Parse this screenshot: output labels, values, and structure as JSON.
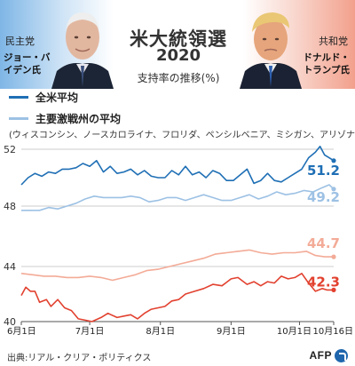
{
  "header": {
    "left_candidate": {
      "party": "民主党",
      "name": "ジョー・バイデン氏"
    },
    "right_candidate": {
      "party": "共和党",
      "name": "ドナルド・トランプ氏"
    },
    "title_line1": "米大統領選",
    "title_line2": "2020",
    "subtitle": "支持率の推移(%)"
  },
  "legend": {
    "national": "全米平均",
    "battleground": "主要激戦州の平均",
    "battleground_note": "(ウィスコンシン、ノースカロライナ、フロリダ、ペンシルベニア、ミシガン、アリゾナ)"
  },
  "source": "出典:リアル・クリア・ポリティクス",
  "logo": "AFP",
  "colors": {
    "national": "#1f6fb5",
    "battleground": "#9dc1e4",
    "trump_national": "#e2412f",
    "trump_battleground": "#f3ab97"
  },
  "chart_data": {
    "type": "line",
    "title": "米大統領選 2020",
    "ylabel": "支持率の推移(%)",
    "xlim": [
      "2020-06-01",
      "2020-10-16"
    ],
    "x_ticks": [
      {
        "date": "2020-06-01",
        "label": "6月1日"
      },
      {
        "date": "2020-07-01",
        "label": "7月1日"
      },
      {
        "date": "2020-08-01",
        "label": "8月1日"
      },
      {
        "date": "2020-09-01",
        "label": "9月1日"
      },
      {
        "date": "2020-10-01",
        "label": "10月1日"
      },
      {
        "date": "2020-10-16",
        "label": "10月16日"
      }
    ],
    "panels": [
      {
        "ylim": [
          48,
          52
        ],
        "yticks": [
          48,
          52
        ]
      },
      {
        "ylim": [
          40,
          44
        ],
        "yticks": [
          40,
          44
        ]
      }
    ],
    "series": [
      {
        "name": "全米平均",
        "candidate": "ジョー・バイデン氏",
        "panel": 0,
        "color": "#1f6fb5",
        "final_label": "51.2",
        "points": [
          [
            "2020-06-01",
            49.5
          ],
          [
            "2020-06-04",
            50.0
          ],
          [
            "2020-06-07",
            50.3
          ],
          [
            "2020-06-10",
            50.1
          ],
          [
            "2020-06-13",
            50.4
          ],
          [
            "2020-06-16",
            50.3
          ],
          [
            "2020-06-19",
            50.6
          ],
          [
            "2020-06-22",
            50.6
          ],
          [
            "2020-06-25",
            50.7
          ],
          [
            "2020-06-28",
            51.0
          ],
          [
            "2020-07-01",
            50.8
          ],
          [
            "2020-07-04",
            51.2
          ],
          [
            "2020-07-07",
            50.4
          ],
          [
            "2020-07-10",
            50.8
          ],
          [
            "2020-07-13",
            50.3
          ],
          [
            "2020-07-16",
            50.4
          ],
          [
            "2020-07-19",
            50.6
          ],
          [
            "2020-07-22",
            50.2
          ],
          [
            "2020-07-25",
            50.5
          ],
          [
            "2020-07-28",
            50.1
          ],
          [
            "2020-07-31",
            50.0
          ],
          [
            "2020-08-03",
            50.0
          ],
          [
            "2020-08-06",
            50.5
          ],
          [
            "2020-08-09",
            50.2
          ],
          [
            "2020-08-12",
            50.8
          ],
          [
            "2020-08-15",
            50.2
          ],
          [
            "2020-08-18",
            50.4
          ],
          [
            "2020-08-21",
            50.0
          ],
          [
            "2020-08-24",
            50.5
          ],
          [
            "2020-08-27",
            50.3
          ],
          [
            "2020-08-30",
            49.8
          ],
          [
            "2020-09-02",
            49.8
          ],
          [
            "2020-09-05",
            50.2
          ],
          [
            "2020-09-08",
            50.6
          ],
          [
            "2020-09-11",
            49.6
          ],
          [
            "2020-09-14",
            49.8
          ],
          [
            "2020-09-17",
            50.3
          ],
          [
            "2020-09-20",
            49.8
          ],
          [
            "2020-09-23",
            49.7
          ],
          [
            "2020-09-26",
            50.0
          ],
          [
            "2020-09-29",
            50.3
          ],
          [
            "2020-10-02",
            50.6
          ],
          [
            "2020-10-05",
            51.4
          ],
          [
            "2020-10-08",
            51.8
          ],
          [
            "2020-10-10",
            52.2
          ],
          [
            "2020-10-12",
            51.6
          ],
          [
            "2020-10-14",
            51.4
          ],
          [
            "2020-10-16",
            51.2
          ]
        ]
      },
      {
        "name": "主要激戦州の平均",
        "candidate": "ジョー・バイデン氏",
        "panel": 0,
        "color": "#9dc1e4",
        "final_label": "49.2",
        "points": [
          [
            "2020-06-01",
            47.7
          ],
          [
            "2020-06-05",
            47.7
          ],
          [
            "2020-06-09",
            47.7
          ],
          [
            "2020-06-13",
            47.9
          ],
          [
            "2020-06-17",
            47.8
          ],
          [
            "2020-06-21",
            48.0
          ],
          [
            "2020-06-25",
            48.2
          ],
          [
            "2020-06-29",
            48.5
          ],
          [
            "2020-07-03",
            48.7
          ],
          [
            "2020-07-07",
            48.6
          ],
          [
            "2020-07-11",
            48.6
          ],
          [
            "2020-07-15",
            48.6
          ],
          [
            "2020-07-19",
            48.7
          ],
          [
            "2020-07-23",
            48.6
          ],
          [
            "2020-07-27",
            48.3
          ],
          [
            "2020-07-31",
            48.4
          ],
          [
            "2020-08-04",
            48.6
          ],
          [
            "2020-08-08",
            48.6
          ],
          [
            "2020-08-12",
            48.4
          ],
          [
            "2020-08-16",
            48.6
          ],
          [
            "2020-08-20",
            48.8
          ],
          [
            "2020-08-24",
            48.6
          ],
          [
            "2020-08-28",
            48.4
          ],
          [
            "2020-09-01",
            48.4
          ],
          [
            "2020-09-05",
            48.6
          ],
          [
            "2020-09-09",
            48.8
          ],
          [
            "2020-09-13",
            48.5
          ],
          [
            "2020-09-17",
            48.7
          ],
          [
            "2020-09-21",
            49.0
          ],
          [
            "2020-09-25",
            48.8
          ],
          [
            "2020-09-29",
            48.9
          ],
          [
            "2020-10-03",
            49.1
          ],
          [
            "2020-10-07",
            49.0
          ],
          [
            "2020-10-11",
            49.3
          ],
          [
            "2020-10-14",
            49.5
          ],
          [
            "2020-10-16",
            49.2
          ]
        ]
      },
      {
        "name": "全米平均",
        "candidate": "ドナルド・トランプ氏",
        "panel": 1,
        "color": "#e2412f",
        "final_label": "42.3",
        "points": [
          [
            "2020-06-01",
            41.9
          ],
          [
            "2020-06-03",
            42.5
          ],
          [
            "2020-06-05",
            42.2
          ],
          [
            "2020-06-07",
            42.2
          ],
          [
            "2020-06-09",
            41.4
          ],
          [
            "2020-06-12",
            41.6
          ],
          [
            "2020-06-14",
            41.1
          ],
          [
            "2020-06-17",
            41.6
          ],
          [
            "2020-06-20",
            41.0
          ],
          [
            "2020-06-23",
            40.8
          ],
          [
            "2020-06-26",
            40.2
          ],
          [
            "2020-06-29",
            40.1
          ],
          [
            "2020-07-02",
            40.0
          ],
          [
            "2020-07-06",
            40.3
          ],
          [
            "2020-07-09",
            40.6
          ],
          [
            "2020-07-13",
            40.3
          ],
          [
            "2020-07-16",
            40.4
          ],
          [
            "2020-07-19",
            40.5
          ],
          [
            "2020-07-22",
            40.2
          ],
          [
            "2020-07-25",
            40.6
          ],
          [
            "2020-07-28",
            40.9
          ],
          [
            "2020-07-31",
            41.0
          ],
          [
            "2020-08-03",
            41.1
          ],
          [
            "2020-08-06",
            41.5
          ],
          [
            "2020-08-09",
            41.6
          ],
          [
            "2020-08-12",
            42.0
          ],
          [
            "2020-08-16",
            42.2
          ],
          [
            "2020-08-20",
            42.4
          ],
          [
            "2020-08-24",
            42.7
          ],
          [
            "2020-08-28",
            42.6
          ],
          [
            "2020-09-01",
            43.1
          ],
          [
            "2020-09-04",
            43.2
          ],
          [
            "2020-09-08",
            42.7
          ],
          [
            "2020-09-11",
            42.9
          ],
          [
            "2020-09-14",
            42.6
          ],
          [
            "2020-09-17",
            42.9
          ],
          [
            "2020-09-20",
            42.8
          ],
          [
            "2020-09-23",
            43.3
          ],
          [
            "2020-09-26",
            43.1
          ],
          [
            "2020-09-29",
            43.2
          ],
          [
            "2020-10-02",
            43.5
          ],
          [
            "2020-10-05",
            42.8
          ],
          [
            "2020-10-08",
            42.2
          ],
          [
            "2020-10-11",
            42.4
          ],
          [
            "2020-10-13",
            42.3
          ],
          [
            "2020-10-16",
            42.3
          ]
        ]
      },
      {
        "name": "主要激戦州の平均",
        "candidate": "ドナルド・トランプ氏",
        "panel": 1,
        "color": "#f3ab97",
        "final_label": "44.7",
        "points": [
          [
            "2020-06-01",
            43.5
          ],
          [
            "2020-06-06",
            43.4
          ],
          [
            "2020-06-11",
            43.3
          ],
          [
            "2020-06-16",
            43.3
          ],
          [
            "2020-06-21",
            43.2
          ],
          [
            "2020-06-26",
            43.2
          ],
          [
            "2020-07-01",
            43.3
          ],
          [
            "2020-07-06",
            43.2
          ],
          [
            "2020-07-11",
            43.0
          ],
          [
            "2020-07-16",
            43.2
          ],
          [
            "2020-07-21",
            43.4
          ],
          [
            "2020-07-26",
            43.7
          ],
          [
            "2020-07-31",
            43.8
          ],
          [
            "2020-08-05",
            44.0
          ],
          [
            "2020-08-10",
            44.2
          ],
          [
            "2020-08-15",
            44.4
          ],
          [
            "2020-08-20",
            44.6
          ],
          [
            "2020-08-25",
            44.9
          ],
          [
            "2020-08-30",
            45.0
          ],
          [
            "2020-09-04",
            45.1
          ],
          [
            "2020-09-09",
            45.2
          ],
          [
            "2020-09-14",
            45.0
          ],
          [
            "2020-09-19",
            44.9
          ],
          [
            "2020-09-24",
            45.0
          ],
          [
            "2020-09-29",
            45.0
          ],
          [
            "2020-10-04",
            45.1
          ],
          [
            "2020-10-08",
            44.8
          ],
          [
            "2020-10-12",
            44.7
          ],
          [
            "2020-10-16",
            44.7
          ]
        ]
      }
    ]
  }
}
